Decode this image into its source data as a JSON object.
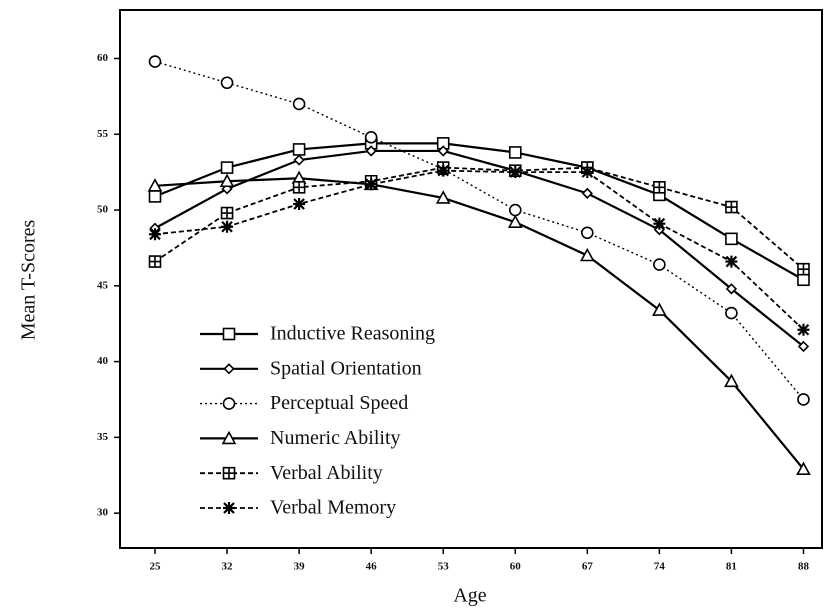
{
  "chart_data": {
    "type": "line",
    "x_label": "Age",
    "y_label": "Mean T-Scores",
    "x": [
      25,
      32,
      39,
      46,
      53,
      60,
      67,
      74,
      81,
      88
    ],
    "xlim": [
      21.6,
      89.8
    ],
    "xticks": [
      25,
      32,
      39,
      46,
      53,
      60,
      67,
      74,
      81,
      88
    ],
    "ylim": [
      27.7,
      63.2
    ],
    "yticks": [
      30,
      35,
      40,
      45,
      50,
      55,
      60
    ],
    "grid": false,
    "legend": "lower left",
    "series": [
      {
        "name": "Inductive Reasoning",
        "color": "#000000",
        "marker": "square",
        "dash": "solid",
        "values": [
          50.9,
          52.8,
          54.0,
          54.4,
          54.4,
          53.8,
          52.8,
          51.0,
          48.1,
          45.4
        ]
      },
      {
        "name": "Spatial Orientation",
        "color": "#000000",
        "marker": "diamond",
        "dash": "solid",
        "values": [
          48.8,
          51.4,
          53.3,
          53.9,
          53.9,
          52.6,
          51.1,
          48.7,
          44.8,
          41.0
        ]
      },
      {
        "name": "Perceptual Speed",
        "color": "#000000",
        "marker": "circle",
        "dash": "dotted",
        "values": [
          59.8,
          58.4,
          57.0,
          54.8,
          52.7,
          50.0,
          48.5,
          46.4,
          43.2,
          37.5
        ]
      },
      {
        "name": "Numeric Ability",
        "color": "#000000",
        "marker": "triangle",
        "dash": "solid",
        "values": [
          51.6,
          51.9,
          52.1,
          51.7,
          50.8,
          49.2,
          47.0,
          43.4,
          38.7,
          32.9
        ]
      },
      {
        "name": "Verbal Ability",
        "color": "#000000",
        "marker": "squareplus",
        "dash": "dashed",
        "values": [
          46.6,
          49.8,
          51.5,
          51.9,
          52.8,
          52.6,
          52.8,
          51.5,
          50.2,
          46.1
        ]
      },
      {
        "name": "Verbal Memory",
        "color": "#000000",
        "marker": "asterisk",
        "dash": "dashed",
        "values": [
          48.4,
          48.9,
          50.4,
          51.7,
          52.6,
          52.5,
          52.5,
          49.1,
          46.6,
          42.1
        ]
      }
    ]
  }
}
